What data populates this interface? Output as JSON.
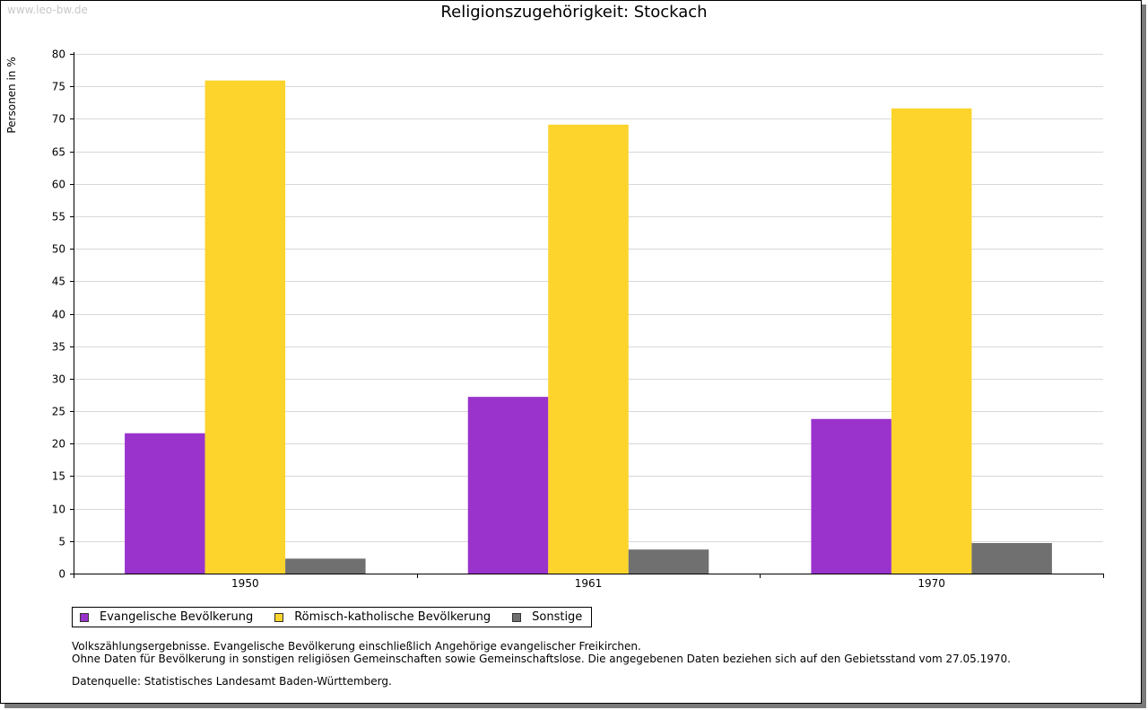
{
  "watermark": "www.leo-bw.de",
  "chart_data": {
    "type": "bar",
    "title": "Religionszugehörigkeit: Stockach",
    "xlabel": "",
    "ylabel": "Personen in %",
    "ylim": [
      0,
      80
    ],
    "ytick_step": 5,
    "grid": true,
    "categories": [
      "1950",
      "1961",
      "1970"
    ],
    "series": [
      {
        "name": "Evangelische Bevölkerung",
        "color": "#9933cc",
        "values": [
          21.6,
          27.2,
          23.8
        ]
      },
      {
        "name": "Römisch-katholische Bevölkerung",
        "color": "#fcd42c",
        "values": [
          75.9,
          69.1,
          71.6
        ]
      },
      {
        "name": "Sonstige",
        "color": "#707070",
        "values": [
          2.3,
          3.7,
          4.7
        ]
      }
    ],
    "legend_position": "bottom-left"
  },
  "notes": [
    "Volkszählungsergebnisse. Evangelische Bevölkerung einschließlich Angehörige evangelischer Freikirchen.",
    "Ohne Daten für Bevölkerung in sonstigen religiösen Gemeinschaften sowie Gemeinschaftslose. Die angegebenen Daten beziehen sich auf den Gebietsstand vom 27.05.1970."
  ],
  "source": "Datenquelle: Statistisches Landesamt Baden-Württemberg."
}
